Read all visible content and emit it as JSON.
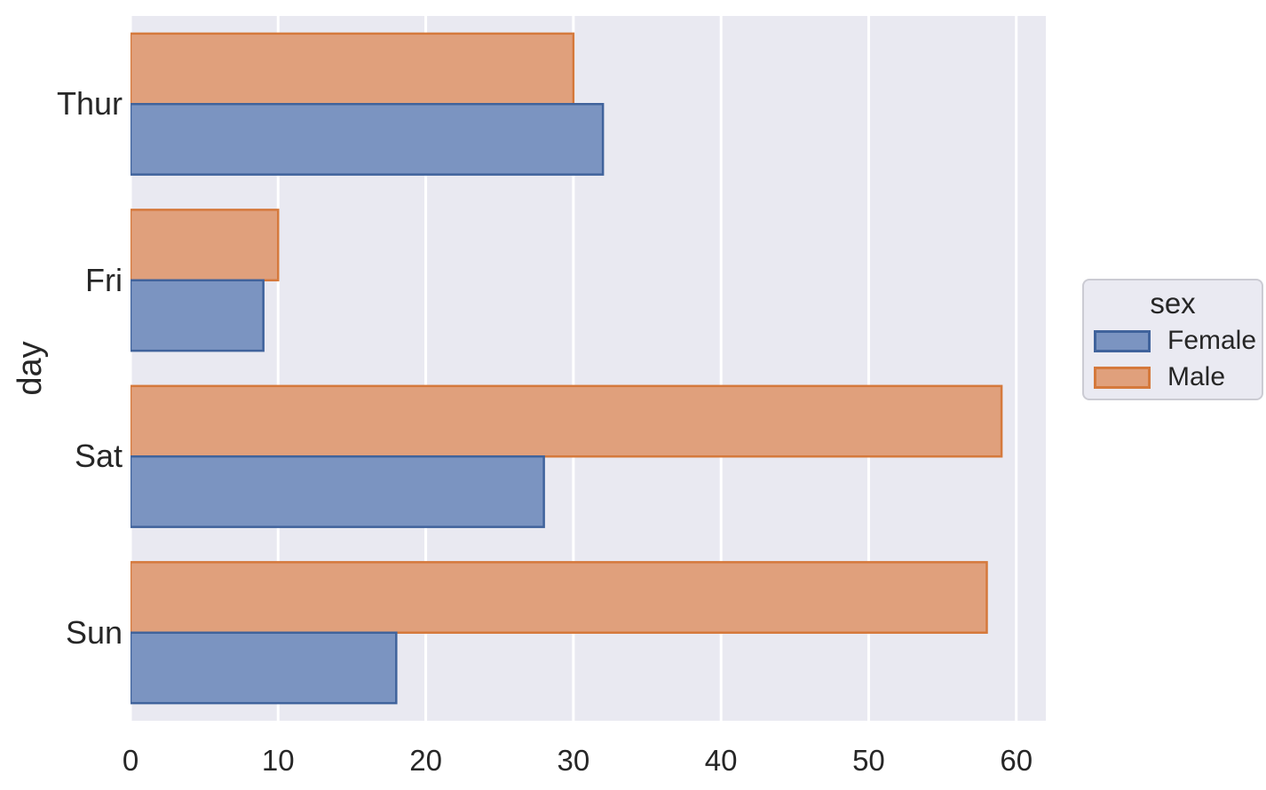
{
  "chart_data": {
    "type": "bar",
    "orientation": "horizontal",
    "title": "",
    "xlabel": "",
    "ylabel": "day",
    "categories": [
      "Thur",
      "Fri",
      "Sat",
      "Sun"
    ],
    "series": [
      {
        "name": "Female",
        "values": [
          32,
          9,
          28,
          18
        ],
        "fill_color": "#7b94c1",
        "edge_color": "#40639c"
      },
      {
        "name": "Male",
        "values": [
          30,
          10,
          59,
          58
        ],
        "fill_color": "#e0a07c",
        "edge_color": "#d5793c"
      }
    ],
    "bar_order_top_to_bottom": [
      "Male",
      "Female"
    ],
    "x_ticks": [
      0,
      10,
      20,
      30,
      40,
      50,
      60
    ],
    "xlim": [
      0,
      62
    ],
    "grid": "vertical white gridlines on",
    "legend": {
      "title": "sex",
      "entries": [
        "Female",
        "Male"
      ],
      "position": "center-right outside plot"
    }
  },
  "style": {
    "figure_background": "#ffffff",
    "plot_background": "#e9e9f1",
    "grid_color": "#ffffff",
    "text_color": "#262626",
    "legend_background": "#eaeaf2",
    "legend_border": "#cbcbd3"
  }
}
